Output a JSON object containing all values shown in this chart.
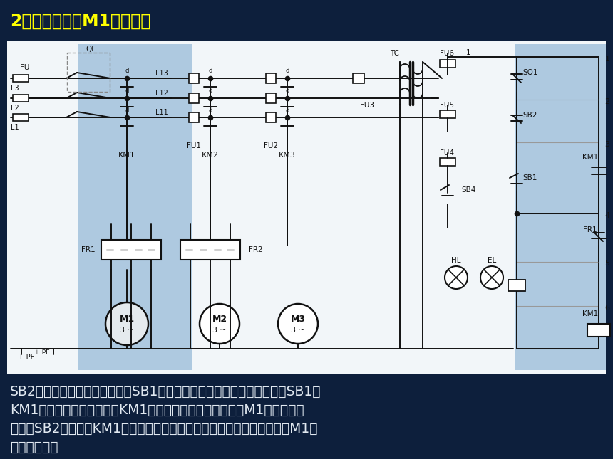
{
  "bg_color": "#0d1f3c",
  "title": "2）主轴电动朼M1的控制。",
  "title_color": "#ffff00",
  "title_fontsize": 17,
  "circuit_bg": "#f0f4f8",
  "circuit_highlight": "#aec9e0",
  "text_color": "#e0e8f0",
  "body_text_line1": "SB2是红色蘑菇型的停止按鈕，SB1是绿色的启动按鈕。按一下启动按鈕SB1，",
  "body_text_line2": "KM1线圈通电吸合并自锁，KM1的主触点闭合，主轴电动朼M1启动运转。",
  "body_text_line3": "按一下SB2，接触器KM1断电释放，其主触点和自锁触点都断开，电动朼M1断",
  "body_text_line4": "电停止运行。",
  "body_fontsize": 13.5
}
